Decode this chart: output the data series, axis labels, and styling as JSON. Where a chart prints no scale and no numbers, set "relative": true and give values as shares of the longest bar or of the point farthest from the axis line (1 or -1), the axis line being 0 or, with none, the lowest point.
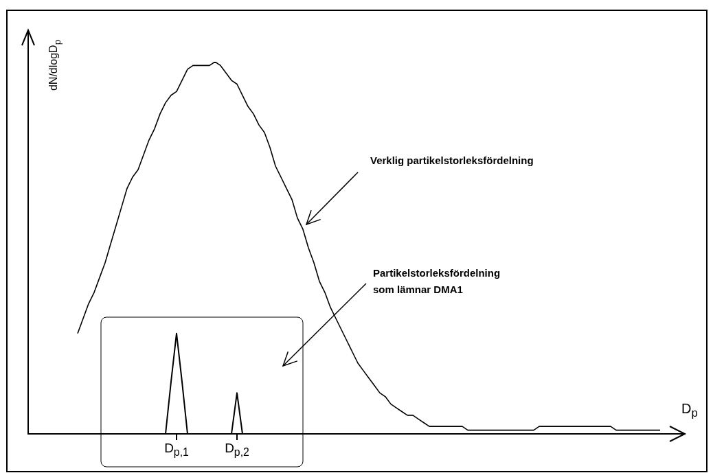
{
  "chart_data": {
    "type": "line",
    "relative": true,
    "marker": "none",
    "xlabel": "D$_{p}$",
    "ylabel": "dN/dlogD$_{p}$",
    "annotations": [
      "Verklig partikelstorleksfördelning",
      "Partikelstorleksfördelning\nsom lämnar DMA1"
    ],
    "categories": [
      null,
      null,
      null,
      null,
      null,
      null,
      null,
      null,
      null,
      null,
      null,
      null,
      null,
      null,
      null,
      null,
      null,
      null,
      null,
      null,
      null,
      null,
      null,
      null,
      null,
      null,
      null,
      "D$_{p,1}$",
      null,
      null,
      null,
      null,
      null,
      null,
      null,
      null,
      null,
      null,
      "D$_{p,2}$",
      null,
      null,
      null,
      null,
      null,
      null,
      null,
      null,
      null,
      null,
      null,
      null,
      null,
      null,
      null,
      null,
      null,
      null,
      null,
      null,
      null,
      null,
      null,
      null,
      null,
      null,
      null,
      null,
      null,
      null,
      null,
      null,
      null,
      null,
      null,
      null,
      null,
      null,
      null,
      null,
      null,
      null,
      null,
      null,
      null,
      null,
      null,
      null,
      null,
      null,
      null,
      null,
      null,
      null,
      null,
      null,
      null,
      null,
      null,
      null,
      null,
      null,
      null,
      null,
      null,
      null,
      null,
      null,
      null,
      null,
      null,
      null,
      null,
      null,
      null,
      null,
      null,
      null,
      null,
      null,
      null
    ],
    "series": [
      {
        "color": "#000000",
        "values": [
          null,
          null,
          null,
          null,
          null,
          null,
          null,
          null,
          null,
          0.27,
          0.31,
          0.35,
          0.38,
          0.42,
          0.46,
          0.51,
          0.56,
          0.61,
          0.66,
          0.69,
          0.71,
          0.75,
          0.79,
          0.82,
          0.86,
          0.89,
          0.91,
          0.92,
          0.95,
          0.98,
          0.99,
          0.99,
          0.99,
          0.99,
          1,
          0.99,
          0.97,
          0.95,
          0.94,
          0.91,
          0.88,
          0.86,
          0.83,
          0.81,
          0.77,
          0.72,
          0.69,
          0.66,
          0.63,
          0.58,
          0.55,
          0.5,
          0.46,
          0.41,
          0.38,
          0.34,
          0.31,
          0.28,
          0.25,
          0.22,
          0.19,
          0.17,
          0.15,
          0.13,
          0.11,
          0.1,
          0.08,
          0.07,
          0.06,
          0.05,
          0.05,
          0.04,
          0.03,
          0.02,
          0.02,
          0.02,
          0.02,
          0.02,
          0.02,
          0.02,
          0.01,
          0.01,
          0.01,
          0.01,
          0.01,
          0.01,
          0.01,
          0.01,
          0.01,
          0.01,
          0.01,
          0.01,
          0.01,
          0.02,
          0.02,
          0.02,
          0.02,
          0.02,
          0.02,
          0.02,
          0.02,
          0.02,
          0.02,
          0.02,
          0.02,
          0.02,
          0.02,
          0.01,
          0.01,
          0.01,
          0.01,
          0.01,
          0.01,
          0.01,
          0.01,
          0.01,
          null,
          null,
          null,
          null
        ]
      },
      {
        "color": "#000000",
        "values": [
          null,
          null,
          null,
          null,
          null,
          null,
          null,
          null,
          null,
          null,
          null,
          null,
          null,
          null,
          null,
          null,
          null,
          null,
          null,
          null,
          null,
          null,
          null,
          null,
          null,
          0,
          0.14,
          0.27,
          0.14,
          0,
          null,
          null,
          null,
          null,
          null,
          null,
          null,
          null,
          null,
          null,
          null,
          null,
          null,
          null,
          null,
          null,
          null,
          null,
          null,
          null,
          null,
          null,
          null,
          null,
          null,
          null,
          null,
          null,
          null,
          null,
          null,
          null,
          null,
          null,
          null,
          null,
          null,
          null,
          null,
          null,
          null,
          null,
          null,
          null,
          null,
          null,
          null,
          null,
          null,
          null,
          null,
          null,
          null,
          null,
          null,
          null,
          null,
          null,
          null,
          null,
          null,
          null,
          null,
          null,
          null,
          null,
          null,
          null,
          null,
          null,
          null,
          null,
          null,
          null,
          null,
          null,
          null,
          null,
          null,
          null,
          null,
          null,
          null,
          null,
          null,
          null,
          null,
          null,
          null,
          null
        ]
      },
      {
        "color": "#000000",
        "values": [
          null,
          null,
          null,
          null,
          null,
          null,
          null,
          null,
          null,
          null,
          null,
          null,
          null,
          null,
          null,
          null,
          null,
          null,
          null,
          null,
          null,
          null,
          null,
          null,
          null,
          null,
          null,
          null,
          null,
          null,
          null,
          null,
          null,
          null,
          null,
          null,
          null,
          0,
          0.11,
          0,
          null,
          null,
          null,
          null,
          null,
          null,
          null,
          null,
          null,
          null,
          null,
          null,
          null,
          null,
          null,
          null,
          null,
          null,
          null,
          null,
          null,
          null,
          null,
          null,
          null,
          null,
          null,
          null,
          null,
          null,
          null,
          null,
          null,
          null,
          null,
          null,
          null,
          null,
          null,
          null,
          null,
          null,
          null,
          null,
          null,
          null,
          null,
          null,
          null,
          null,
          null,
          null,
          null,
          null,
          null,
          null,
          null,
          null,
          null,
          null,
          null,
          null,
          null,
          null,
          null,
          null,
          null,
          null,
          null,
          null,
          null,
          null,
          null,
          null,
          null,
          null,
          null,
          null,
          null,
          null
        ]
      }
    ]
  }
}
